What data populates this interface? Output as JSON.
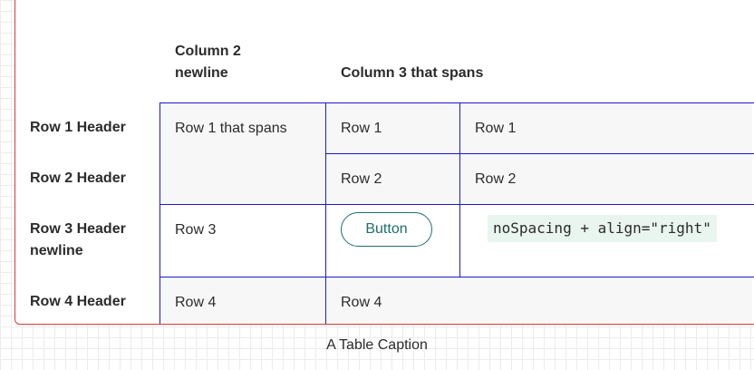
{
  "table": {
    "columns": {
      "col2_line1": "Column 2",
      "col2_line2": "newline",
      "col3": "Column 3 that spans"
    },
    "rows": {
      "r1_header": "Row 1 Header",
      "r2_header": "Row 2 Header",
      "r3_header_line1": "Row 3 Header",
      "r3_header_line2": "newline",
      "r4_header": "Row 4 Header",
      "r1_span": "Row 1 that spans",
      "r1_c3": "Row 1",
      "r1_c4": "Row 1",
      "r2_c3": "Row 2",
      "r2_c4": "Row 2",
      "r3_c2": "Row 3",
      "r3_button": "Button",
      "r3_code": "noSpacing + align=\"right\"",
      "r4_c2": "Row 4",
      "r4_c3": "Row 4"
    },
    "caption": "A Table Caption"
  },
  "colors": {
    "frame_border": "#d93a3a",
    "grid_lines": "#1b1bcc",
    "accent": "#1f6f6b",
    "code_bg": "#e9f5ef"
  }
}
